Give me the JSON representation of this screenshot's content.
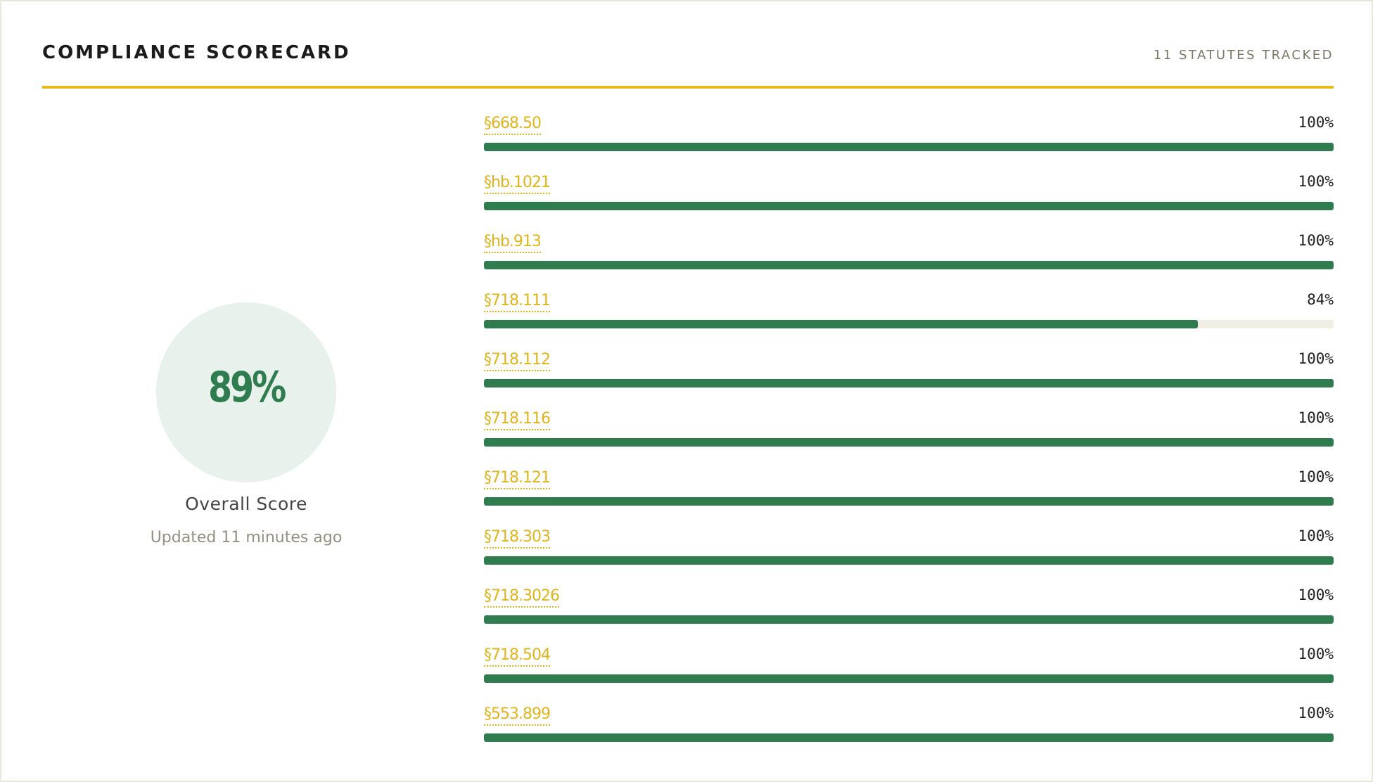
{
  "header": {
    "title": "COMPLIANCE SCORECARD",
    "tracked": "11 STATUTES TRACKED"
  },
  "summary": {
    "score": "89%",
    "label": "Overall Score",
    "updated": "Updated 11 minutes ago"
  },
  "colors": {
    "accent": "#e7b91c",
    "bar_fill": "#2f7c4f",
    "bar_track": "#f1eee3",
    "score_circle": "#e9f1ec"
  },
  "statutes": [
    {
      "name": "§668.50",
      "percent_label": "100%",
      "value": 100
    },
    {
      "name": "§hb.1021",
      "percent_label": "100%",
      "value": 100
    },
    {
      "name": "§hb.913",
      "percent_label": "100%",
      "value": 100
    },
    {
      "name": "§718.111",
      "percent_label": "84%",
      "value": 84
    },
    {
      "name": "§718.112",
      "percent_label": "100%",
      "value": 100
    },
    {
      "name": "§718.116",
      "percent_label": "100%",
      "value": 100
    },
    {
      "name": "§718.121",
      "percent_label": "100%",
      "value": 100
    },
    {
      "name": "§718.303",
      "percent_label": "100%",
      "value": 100
    },
    {
      "name": "§718.3026",
      "percent_label": "100%",
      "value": 100
    },
    {
      "name": "§718.504",
      "percent_label": "100%",
      "value": 100
    },
    {
      "name": "§553.899",
      "percent_label": "100%",
      "value": 100
    }
  ]
}
